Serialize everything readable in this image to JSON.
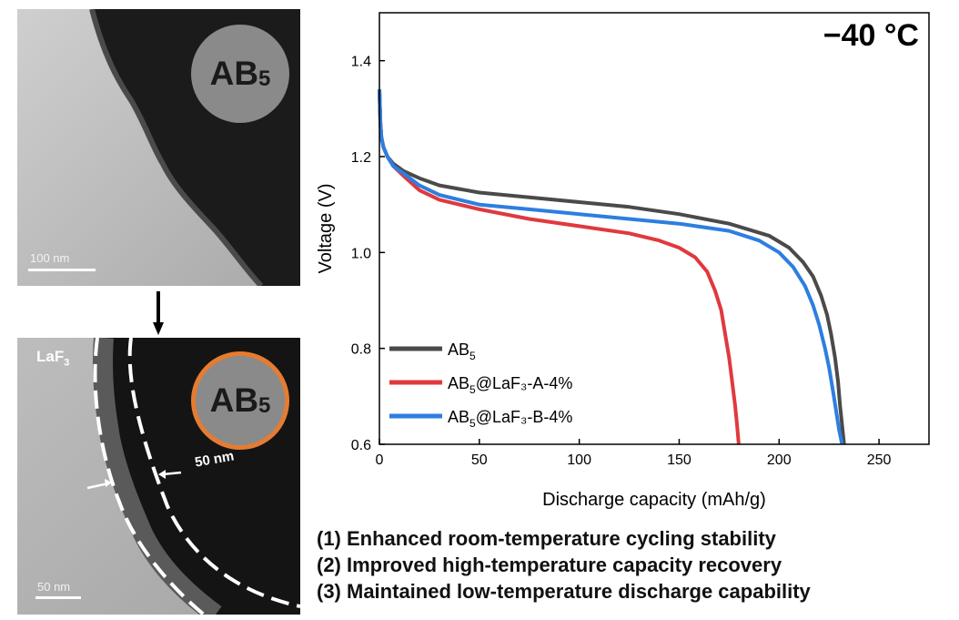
{
  "tem_images": {
    "top": {
      "particle_label": "AB",
      "particle_sub": "5",
      "scale_bar": "100 nm"
    },
    "bottom": {
      "particle_label": "AB",
      "particle_sub": "5",
      "coating_label": "LaF",
      "coating_sub": "3",
      "thickness_label": "50 nm",
      "scale_bar": "50 nm"
    }
  },
  "chart_data": {
    "type": "line",
    "annotation": "−40 °C",
    "xlabel": "Discharge capacity (mAh/g)",
    "ylabel": "Voltage (V)",
    "xlim": [
      0,
      275
    ],
    "ylim": [
      0.6,
      1.5
    ],
    "xticks": [
      0,
      50,
      100,
      150,
      200,
      250
    ],
    "yticks": [
      0.6,
      0.8,
      1.0,
      1.2,
      1.4
    ],
    "legend_position": "bottom-left",
    "series": [
      {
        "name": "AB",
        "name_sub": "5",
        "name_suffix": "",
        "color": "#4a4a4a",
        "x": [
          0,
          0.5,
          1,
          2,
          4,
          7,
          12,
          20,
          30,
          50,
          75,
          100,
          125,
          150,
          175,
          195,
          205,
          212,
          217,
          221,
          224,
          226,
          228,
          229.5,
          230.5,
          231.5,
          232.5
        ],
        "y": [
          1.34,
          1.27,
          1.24,
          1.22,
          1.2,
          1.185,
          1.17,
          1.155,
          1.14,
          1.125,
          1.115,
          1.105,
          1.095,
          1.08,
          1.06,
          1.035,
          1.01,
          0.98,
          0.95,
          0.91,
          0.87,
          0.83,
          0.78,
          0.73,
          0.68,
          0.64,
          0.6
        ]
      },
      {
        "name": "AB",
        "name_sub": "5",
        "name_suffix": "@LaF₃-A-4%",
        "color": "#e0393e",
        "x": [
          0,
          0.5,
          1,
          2,
          4,
          7,
          12,
          20,
          30,
          50,
          75,
          100,
          125,
          140,
          150,
          158,
          164,
          168,
          171,
          173,
          175,
          176.5,
          178,
          179,
          179.8
        ],
        "y": [
          1.34,
          1.27,
          1.24,
          1.22,
          1.2,
          1.18,
          1.16,
          1.13,
          1.11,
          1.09,
          1.07,
          1.055,
          1.04,
          1.025,
          1.01,
          0.99,
          0.96,
          0.92,
          0.88,
          0.83,
          0.78,
          0.73,
          0.68,
          0.64,
          0.6
        ]
      },
      {
        "name": "AB",
        "name_sub": "5",
        "name_suffix": "@LaF₃-B-4%",
        "color": "#2d7ee0",
        "x": [
          0,
          0.5,
          1,
          2,
          4,
          7,
          12,
          20,
          30,
          50,
          75,
          100,
          125,
          150,
          175,
          190,
          200,
          207,
          213,
          217,
          220,
          223,
          225,
          227,
          228.5,
          230,
          231.5
        ],
        "y": [
          1.34,
          1.27,
          1.24,
          1.22,
          1.2,
          1.18,
          1.165,
          1.14,
          1.12,
          1.1,
          1.09,
          1.08,
          1.07,
          1.06,
          1.045,
          1.025,
          1.0,
          0.97,
          0.93,
          0.89,
          0.85,
          0.8,
          0.76,
          0.71,
          0.67,
          0.63,
          0.6
        ]
      }
    ]
  },
  "highlights": [
    "(1) Enhanced room-temperature cycling stability",
    "(2) Improved high-temperature capacity recovery",
    "(3) Maintained low-temperature discharge capability"
  ]
}
